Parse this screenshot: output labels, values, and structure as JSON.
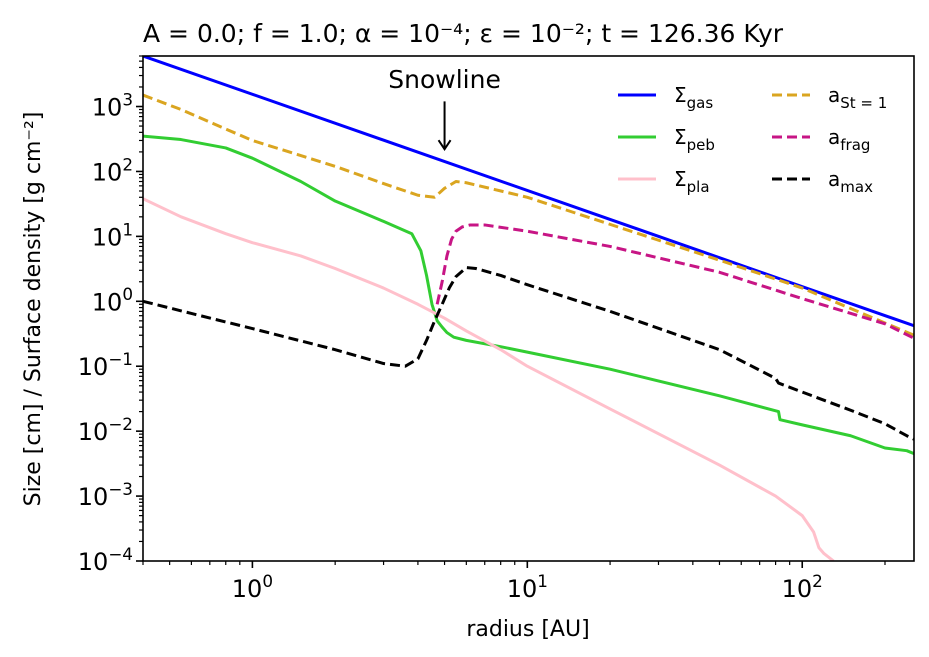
{
  "chart_data": {
    "type": "line",
    "title": "A = 0.0; f = 1.0; α = 10⁻⁴; ε = 10⁻²; t = 126.36 Kyr",
    "xlabel": "radius [AU]",
    "ylabel": "Size [cm] / Surface density [g cm⁻²]",
    "xscale": "log",
    "yscale": "log",
    "xlim": [
      0.4,
      255
    ],
    "ylim": [
      0.0001,
      6000
    ],
    "x_ticks": [
      {
        "value": 1,
        "mantissa": "10",
        "exp": "0"
      },
      {
        "value": 10,
        "mantissa": "10",
        "exp": "1"
      },
      {
        "value": 100,
        "mantissa": "10",
        "exp": "2"
      }
    ],
    "y_ticks": [
      {
        "value": 0.0001,
        "mantissa": "10",
        "exp": "−4"
      },
      {
        "value": 0.001,
        "mantissa": "10",
        "exp": "−3"
      },
      {
        "value": 0.01,
        "mantissa": "10",
        "exp": "−2"
      },
      {
        "value": 0.1,
        "mantissa": "10",
        "exp": "−1"
      },
      {
        "value": 1,
        "mantissa": "10",
        "exp": "0"
      },
      {
        "value": 10,
        "mantissa": "10",
        "exp": "1"
      },
      {
        "value": 100,
        "mantissa": "10",
        "exp": "2"
      },
      {
        "value": 1000,
        "mantissa": "10",
        "exp": "3"
      }
    ],
    "legend_position": "top-right",
    "annotation": {
      "text": "Snowline",
      "x": 5.0,
      "y_from": 1200,
      "y_to": 220
    },
    "series": [
      {
        "name": "Σ_gas",
        "label_base": "Σ",
        "label_sub": "gas",
        "color": "#0000ff",
        "dash": "solid",
        "x": [
          0.4,
          255
        ],
        "y": [
          6000,
          0.42
        ]
      },
      {
        "name": "Σ_peb",
        "label_base": "Σ",
        "label_sub": "peb",
        "color": "#32cd32",
        "dash": "solid",
        "x": [
          0.4,
          0.55,
          0.8,
          1.0,
          1.5,
          2.0,
          3.0,
          3.8,
          4.1,
          4.3,
          4.5,
          4.7,
          4.9,
          5.1,
          5.4,
          6.0,
          8.0,
          10.0,
          20.0,
          50.0,
          82.0,
          83.0,
          100.0,
          150.0,
          200.0,
          240.0,
          255.0
        ],
        "y": [
          350,
          310,
          230,
          160,
          70,
          35,
          17,
          11,
          6,
          2.5,
          0.9,
          0.5,
          0.4,
          0.33,
          0.28,
          0.25,
          0.2,
          0.165,
          0.09,
          0.035,
          0.02,
          0.015,
          0.0125,
          0.0085,
          0.0055,
          0.005,
          0.0045
        ]
      },
      {
        "name": "Σ_pla",
        "label_base": "Σ",
        "label_sub": "pla",
        "color": "#ffc0cb",
        "dash": "solid",
        "x": [
          0.4,
          0.55,
          0.8,
          1.0,
          1.5,
          2.0,
          3.0,
          4.0,
          5.0,
          6.0,
          8.0,
          10.0,
          20.0,
          50.0,
          80.0,
          100.0,
          110.0,
          115.0,
          120.0,
          130.0
        ],
        "y": [
          38,
          20,
          11,
          8,
          5,
          3.2,
          1.6,
          0.9,
          0.55,
          0.35,
          0.18,
          0.1,
          0.022,
          0.003,
          0.001,
          0.0005,
          0.00028,
          0.00016,
          0.00013,
          0.0001
        ]
      },
      {
        "name": "a_St=1",
        "label_base": "a",
        "label_sub": "St = 1",
        "color": "#daa520",
        "dash": "10,5",
        "x": [
          0.4,
          0.55,
          0.8,
          1.0,
          2.0,
          3.0,
          4.0,
          4.6,
          5.0,
          5.5,
          6.0,
          10.0,
          50.0,
          100.0,
          255.0
        ],
        "y": [
          1500,
          900,
          450,
          300,
          120,
          65,
          43,
          40,
          55,
          70,
          67,
          40,
          4.3,
          1.6,
          0.3
        ]
      },
      {
        "name": "a_frag",
        "label_base": "a",
        "label_sub": "frag",
        "color": "#c71585",
        "dash": "10,5",
        "x": [
          4.7,
          4.9,
          5.1,
          5.3,
          5.5,
          5.8,
          6.2,
          7.0,
          10.0,
          20.0,
          50.0,
          100.0,
          200.0,
          255.0
        ],
        "y": [
          0.9,
          2.0,
          5.0,
          9.0,
          12.0,
          14.0,
          15.0,
          15.0,
          12.0,
          7.0,
          2.8,
          1.1,
          0.45,
          0.27
        ]
      },
      {
        "name": "a_max",
        "label_base": "a",
        "label_sub": "max",
        "color": "#000000",
        "dash": "10,5",
        "x": [
          0.4,
          0.6,
          1.0,
          2.0,
          3.0,
          3.6,
          4.0,
          4.3,
          4.6,
          4.9,
          5.2,
          5.5,
          6.0,
          6.5,
          8.0,
          10.0,
          20.0,
          50.0,
          80.0,
          82.0,
          100.0,
          150.0,
          200.0,
          240.0,
          255.0
        ],
        "y": [
          1.0,
          0.65,
          0.38,
          0.18,
          0.11,
          0.1,
          0.13,
          0.25,
          0.5,
          0.9,
          1.6,
          2.4,
          3.3,
          3.2,
          2.5,
          1.8,
          0.7,
          0.18,
          0.065,
          0.055,
          0.04,
          0.021,
          0.013,
          0.0085,
          0.0075
        ]
      }
    ]
  }
}
